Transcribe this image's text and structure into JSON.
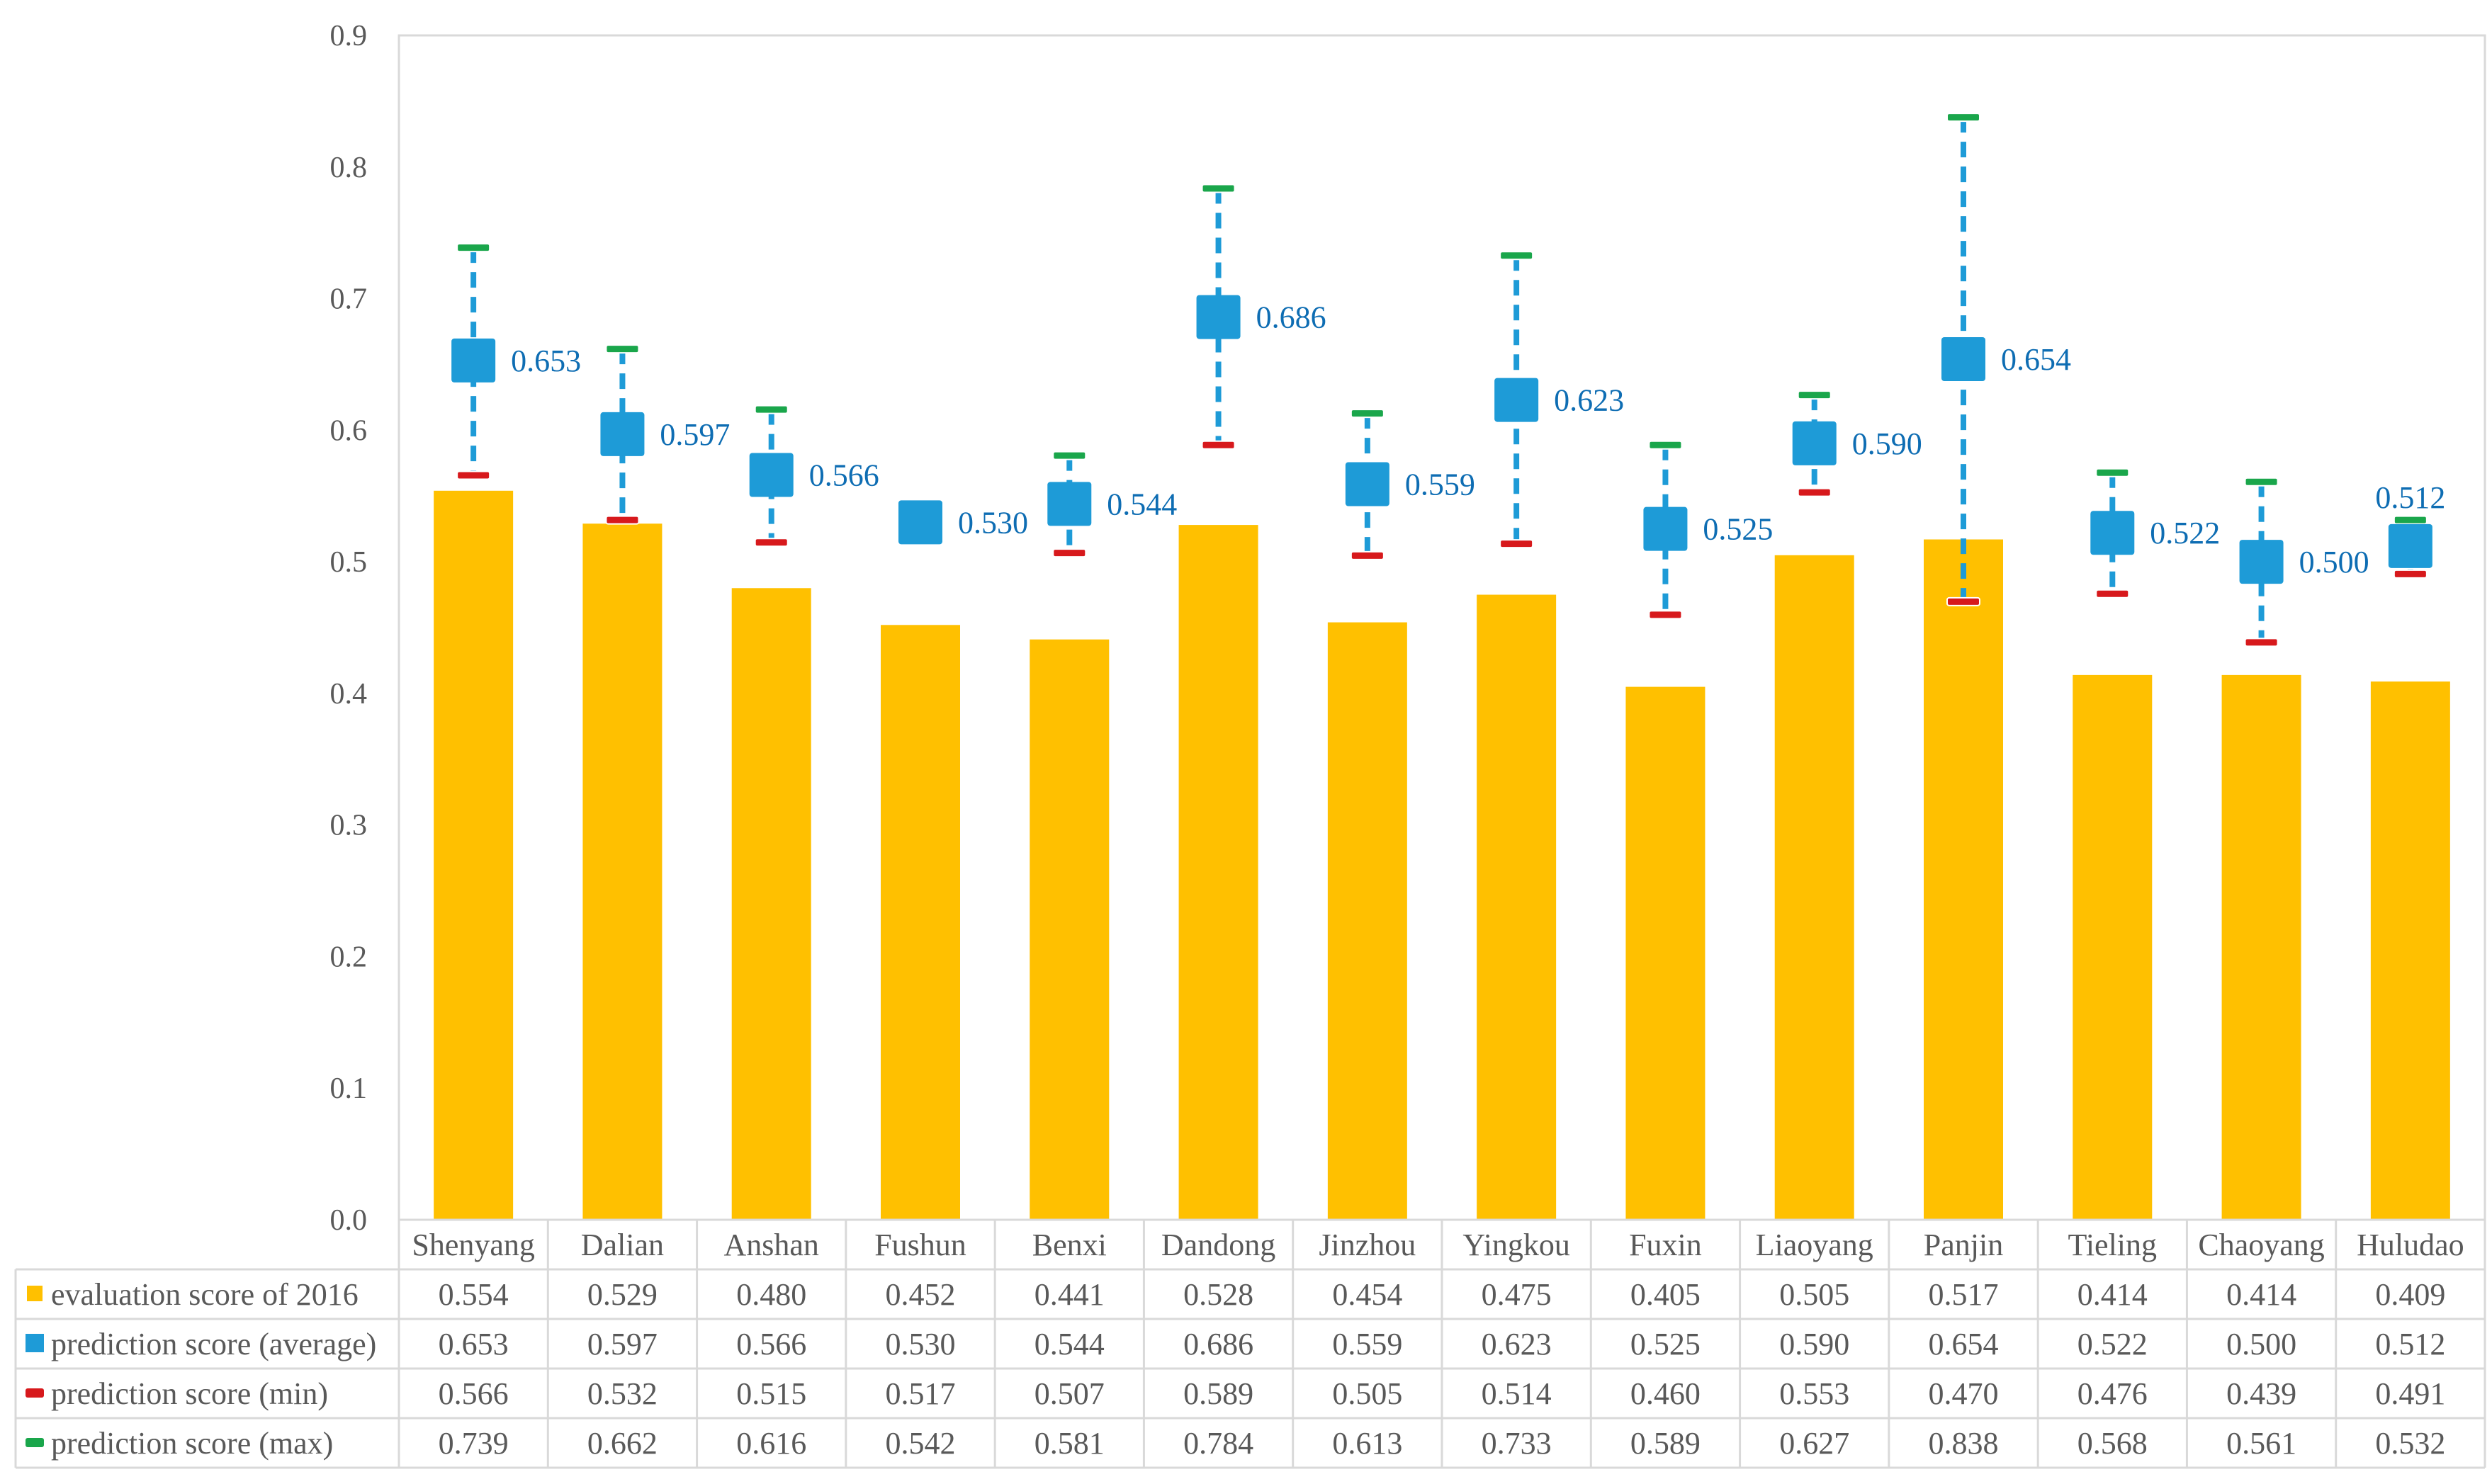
{
  "chart_data": {
    "type": "bar",
    "title": "",
    "xlabel": "",
    "ylabel": "",
    "ylim": [
      0,
      0.9
    ],
    "yticks": [
      "0.0",
      "0.1",
      "0.2",
      "0.3",
      "0.4",
      "0.5",
      "0.6",
      "0.7",
      "0.8",
      "0.9"
    ],
    "grid": false,
    "categories": [
      "Shenyang",
      "Dalian",
      "Anshan",
      "Fushun",
      "Benxi",
      "Dandong",
      "Jinzhou",
      "Yingkou",
      "Fuxin",
      "Liaoyang",
      "Panjin",
      "Tieling",
      "Chaoyang",
      "Huludao"
    ],
    "series": [
      {
        "name": "evaluation score of 2016",
        "mark": "bar",
        "color": "#ffc000",
        "values": [
          0.554,
          0.529,
          0.48,
          0.452,
          0.441,
          0.528,
          0.454,
          0.475,
          0.405,
          0.505,
          0.517,
          0.414,
          0.414,
          0.409
        ],
        "labels": [
          "0.554",
          "0.529",
          "0.480",
          "0.452",
          "0.441",
          "0.528",
          "0.454",
          "0.475",
          "0.405",
          "0.505",
          "0.517",
          "0.414",
          "0.414",
          "0.409"
        ]
      },
      {
        "name": "prediction score (average)",
        "mark": "square",
        "color": "#1e9bd7",
        "values": [
          0.653,
          0.597,
          0.566,
          0.53,
          0.544,
          0.686,
          0.559,
          0.623,
          0.525,
          0.59,
          0.654,
          0.522,
          0.5,
          0.512
        ],
        "labels": [
          "0.653",
          "0.597",
          "0.566",
          "0.530",
          "0.544",
          "0.686",
          "0.559",
          "0.623",
          "0.525",
          "0.590",
          "0.654",
          "0.522",
          "0.500",
          "0.512"
        ]
      },
      {
        "name": "prediction score (min)",
        "mark": "dash",
        "color": "#d7191c",
        "values": [
          0.566,
          0.532,
          0.515,
          0.517,
          0.507,
          0.589,
          0.505,
          0.514,
          0.46,
          0.553,
          0.47,
          0.476,
          0.439,
          0.491
        ],
        "labels": [
          "0.566",
          "0.532",
          "0.515",
          "0.517",
          "0.507",
          "0.589",
          "0.505",
          "0.514",
          "0.460",
          "0.553",
          "0.470",
          "0.476",
          "0.439",
          "0.491"
        ]
      },
      {
        "name": "prediction score (max)",
        "mark": "dash",
        "color": "#1aa64b",
        "values": [
          0.739,
          0.662,
          0.616,
          0.542,
          0.581,
          0.784,
          0.613,
          0.733,
          0.589,
          0.627,
          0.838,
          0.568,
          0.561,
          0.532
        ],
        "labels": [
          "0.739",
          "0.662",
          "0.616",
          "0.542",
          "0.581",
          "0.784",
          "0.613",
          "0.733",
          "0.589",
          "0.627",
          "0.838",
          "0.568",
          "0.561",
          "0.532"
        ]
      }
    ],
    "error_bar": {
      "from": "prediction score (min)",
      "to": "prediction score (max)",
      "style": "dashed",
      "color": "#1e9bd7"
    },
    "data_labels_series": "prediction score (average)",
    "legend": "data-table-bottom"
  }
}
